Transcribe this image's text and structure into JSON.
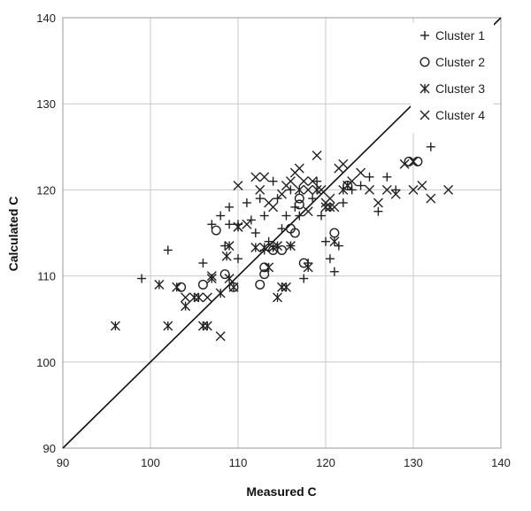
{
  "chart_data": {
    "type": "scatter",
    "title": "",
    "xlabel": "Measured C",
    "ylabel": "Calculated C",
    "xlim": [
      90,
      140
    ],
    "ylim": [
      90,
      140
    ],
    "xticks": [
      90,
      100,
      110,
      120,
      130,
      140
    ],
    "yticks": [
      90,
      100,
      110,
      120,
      130,
      140
    ],
    "grid": true,
    "legend_position": "top-right",
    "reference_line": {
      "from": [
        90,
        90
      ],
      "to": [
        140,
        140
      ]
    },
    "series": [
      {
        "name": "Cluster 1",
        "marker": "plus",
        "points": [
          [
            99,
            109.7
          ],
          [
            102,
            113
          ],
          [
            106,
            111.5
          ],
          [
            107,
            116
          ],
          [
            108.5,
            113.5
          ],
          [
            109,
            118
          ],
          [
            109,
            116
          ],
          [
            110,
            112
          ],
          [
            111,
            118.5
          ],
          [
            111.5,
            116.5
          ],
          [
            112,
            115
          ],
          [
            112.5,
            119
          ],
          [
            113,
            117
          ],
          [
            113.5,
            114
          ],
          [
            114,
            121
          ],
          [
            114.5,
            119
          ],
          [
            115,
            115.5
          ],
          [
            115.5,
            117
          ],
          [
            116,
            113.5
          ],
          [
            116,
            120
          ],
          [
            116.5,
            118
          ],
          [
            117,
            117
          ],
          [
            117.5,
            109.7
          ],
          [
            118,
            111.5
          ],
          [
            118.5,
            119
          ],
          [
            119,
            121
          ],
          [
            119.5,
            117
          ],
          [
            120,
            114
          ],
          [
            120.5,
            112
          ],
          [
            121,
            110.5
          ],
          [
            121.5,
            113.5
          ],
          [
            122,
            118.5
          ],
          [
            123,
            120
          ],
          [
            124,
            120.5
          ],
          [
            125,
            121.5
          ],
          [
            126,
            117.5
          ],
          [
            127,
            121.5
          ],
          [
            128,
            120
          ],
          [
            132,
            125
          ],
          [
            108,
            117
          ],
          [
            110,
            116
          ],
          [
            113,
            113
          ]
        ]
      },
      {
        "name": "Cluster 2",
        "marker": "circle",
        "points": [
          [
            103.5,
            108.7
          ],
          [
            106,
            109
          ],
          [
            107.5,
            115.3
          ],
          [
            108.5,
            110.2
          ],
          [
            109.5,
            108.7
          ],
          [
            112.5,
            109
          ],
          [
            113,
            111
          ],
          [
            113,
            110.2
          ],
          [
            114,
            113
          ],
          [
            115,
            113
          ],
          [
            116,
            115.5
          ],
          [
            116.5,
            115
          ],
          [
            117.5,
            111.5
          ],
          [
            117,
            119
          ],
          [
            121,
            115
          ],
          [
            122.5,
            120.5
          ],
          [
            129.5,
            123.3
          ],
          [
            130.5,
            123.3
          ],
          [
            117,
            118.3
          ]
        ]
      },
      {
        "name": "Cluster 3",
        "marker": "asterisk",
        "points": [
          [
            96,
            104.2
          ],
          [
            101,
            109
          ],
          [
            102,
            104.2
          ],
          [
            103,
            108.7
          ],
          [
            104,
            106.5
          ],
          [
            105,
            107.5
          ],
          [
            105.5,
            107.5
          ],
          [
            106,
            104.2
          ],
          [
            106.5,
            104.2
          ],
          [
            107,
            109.7
          ],
          [
            108,
            108
          ],
          [
            108.7,
            112.3
          ],
          [
            109,
            109.7
          ],
          [
            109.5,
            108.7
          ],
          [
            110,
            115.7
          ],
          [
            112,
            113.3
          ],
          [
            113,
            113.3
          ],
          [
            113.5,
            111
          ],
          [
            114,
            113.3
          ],
          [
            114.5,
            107.5
          ],
          [
            115,
            108.7
          ],
          [
            115.5,
            108.7
          ],
          [
            116,
            113.5
          ],
          [
            117,
            120
          ],
          [
            118,
            111
          ],
          [
            119,
            120
          ],
          [
            120,
            118
          ],
          [
            120.5,
            118
          ],
          [
            121,
            114
          ],
          [
            122,
            120
          ],
          [
            122.5,
            120.5
          ],
          [
            110,
            115.7
          ],
          [
            114.5,
            113.5
          ],
          [
            109,
            113.5
          ]
        ]
      },
      {
        "name": "Cluster 4",
        "marker": "x",
        "points": [
          [
            104,
            107.5
          ],
          [
            106.5,
            107.5
          ],
          [
            107,
            110
          ],
          [
            108,
            103
          ],
          [
            110,
            120.5
          ],
          [
            111,
            116
          ],
          [
            112,
            121.5
          ],
          [
            112.5,
            120
          ],
          [
            113,
            121.5
          ],
          [
            113.5,
            118.5
          ],
          [
            114,
            118
          ],
          [
            115,
            119.5
          ],
          [
            115.5,
            120.5
          ],
          [
            116,
            121
          ],
          [
            116.5,
            122
          ],
          [
            117,
            122.5
          ],
          [
            117.5,
            121
          ],
          [
            118,
            120
          ],
          [
            118.5,
            121
          ],
          [
            119,
            124
          ],
          [
            119.5,
            120
          ],
          [
            120,
            118.5
          ],
          [
            120.5,
            119
          ],
          [
            121,
            118
          ],
          [
            121.5,
            122.5
          ],
          [
            122,
            123
          ],
          [
            123,
            121
          ],
          [
            124,
            122
          ],
          [
            125,
            120
          ],
          [
            126,
            118.5
          ],
          [
            127,
            120
          ],
          [
            128,
            119.5
          ],
          [
            129,
            123
          ],
          [
            130,
            120
          ],
          [
            131,
            120.5
          ],
          [
            132,
            119
          ],
          [
            134,
            120
          ],
          [
            130,
            123.3
          ],
          [
            122.5,
            120.5
          ],
          [
            118,
            117.5
          ]
        ]
      }
    ]
  }
}
